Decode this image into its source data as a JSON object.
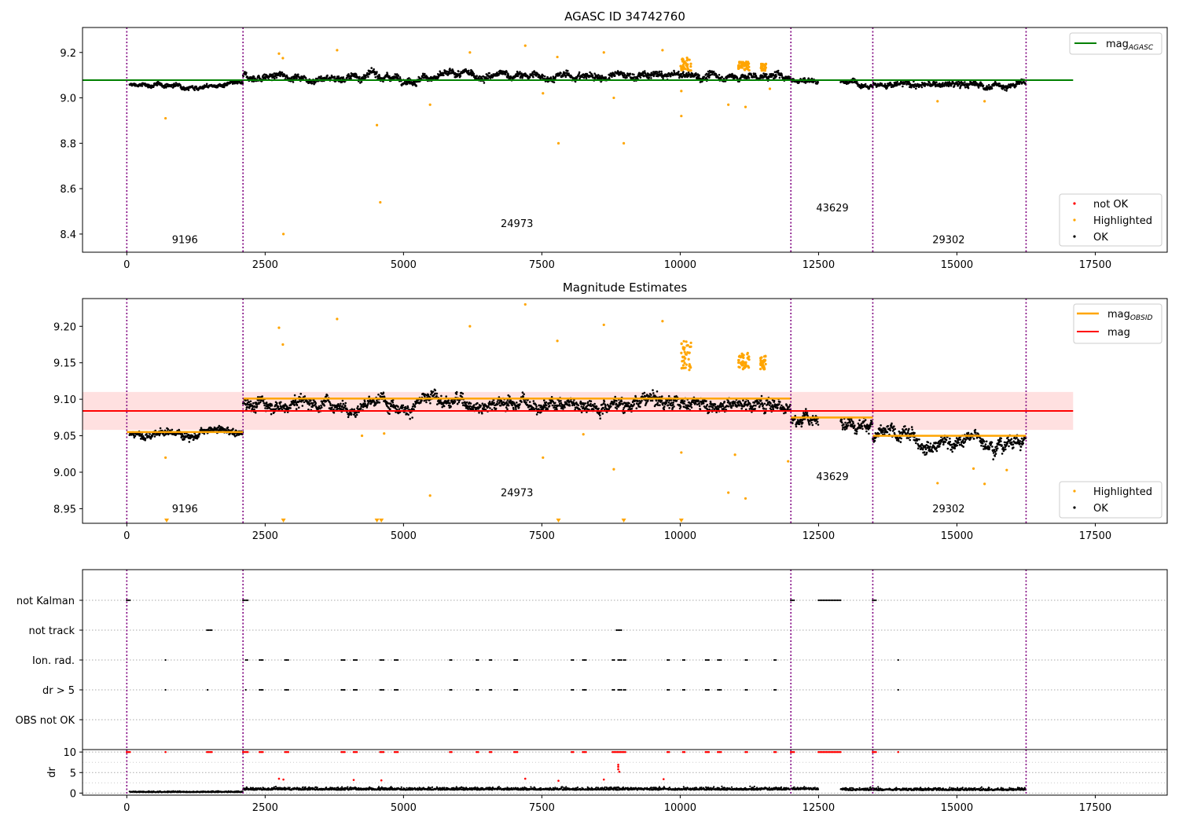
{
  "chart_data": [
    {
      "type": "scatter",
      "title": "AGASC ID 34742760",
      "xlim": [
        -800,
        18800
      ],
      "ylim": [
        8.32,
        9.31
      ],
      "xticks": [
        0,
        2500,
        5000,
        7500,
        10000,
        12500,
        15000,
        17500
      ],
      "yticks": [
        8.4,
        8.6,
        8.8,
        9.0,
        9.2
      ],
      "ytick_labels": [
        "8.4",
        "8.6",
        "8.8",
        "9.0",
        "9.2"
      ],
      "obs_boundaries": [
        0,
        2100,
        12000,
        13480,
        16250
      ],
      "obs_labels": [
        {
          "text": "9196",
          "x": 1050,
          "y": 8.36
        },
        {
          "text": "24973",
          "x": 7050,
          "y": 8.43
        },
        {
          "text": "43629",
          "x": 12750,
          "y": 8.5
        },
        {
          "text": "29302",
          "x": 14850,
          "y": 8.36
        }
      ],
      "hline": {
        "name": "mag_AGASC",
        "y": 9.078,
        "x_range": [
          -800,
          17100
        ],
        "color": "#008000"
      },
      "segments": [
        {
          "x": [
            50,
            2100
          ],
          "center": 9.055,
          "spread": 0.02
        },
        {
          "x": [
            2100,
            12000
          ],
          "center": 9.095,
          "spread": 0.035
        },
        {
          "x": [
            12000,
            12500
          ],
          "center": 9.08,
          "spread": 0.025
        },
        {
          "x": [
            12900,
            13480
          ],
          "center": 9.07,
          "spread": 0.025
        },
        {
          "x": [
            13480,
            16250
          ],
          "center": 9.055,
          "spread": 0.03
        }
      ],
      "highlighted_points": [
        {
          "x": 700,
          "y": 8.91
        },
        {
          "x": 2750,
          "y": 9.195
        },
        {
          "x": 2820,
          "y": 9.175
        },
        {
          "x": 2830,
          "y": 8.4
        },
        {
          "x": 3800,
          "y": 9.21
        },
        {
          "x": 4520,
          "y": 8.88
        },
        {
          "x": 4580,
          "y": 8.54
        },
        {
          "x": 5480,
          "y": 8.97
        },
        {
          "x": 6200,
          "y": 9.2
        },
        {
          "x": 7200,
          "y": 9.23
        },
        {
          "x": 7520,
          "y": 9.02
        },
        {
          "x": 7780,
          "y": 9.18
        },
        {
          "x": 7800,
          "y": 8.8
        },
        {
          "x": 8620,
          "y": 9.2
        },
        {
          "x": 8800,
          "y": 9.0
        },
        {
          "x": 8980,
          "y": 8.8
        },
        {
          "x": 9680,
          "y": 9.21
        },
        {
          "x": 10020,
          "y": 9.03
        },
        {
          "x": 10020,
          "y": 8.92
        },
        {
          "x": 10870,
          "y": 8.97
        },
        {
          "x": 11180,
          "y": 8.96
        },
        {
          "x": 11620,
          "y": 9.04
        },
        {
          "x": 14650,
          "y": 8.985
        },
        {
          "x": 15500,
          "y": 8.985
        }
      ],
      "highlighted_clusters": [
        {
          "x": [
            10000,
            10200
          ],
          "y": [
            9.12,
            9.18
          ]
        },
        {
          "x": [
            11050,
            11250
          ],
          "y": [
            9.12,
            9.16
          ]
        },
        {
          "x": [
            11450,
            11550
          ],
          "y": [
            9.12,
            9.15
          ]
        }
      ],
      "legend": {
        "line": [
          {
            "label_main": "mag",
            "label_sub": "AGASC",
            "color": "#008000"
          }
        ],
        "points": [
          {
            "label": "not OK",
            "color": "#ff0000"
          },
          {
            "label": "Highlighted",
            "color": "#ffa500"
          },
          {
            "label": "OK",
            "color": "#000000"
          }
        ]
      }
    },
    {
      "type": "scatter",
      "title": "Magnitude Estimates",
      "xlim": [
        -800,
        18800
      ],
      "ylim": [
        8.93,
        9.238
      ],
      "xticks": [
        0,
        2500,
        5000,
        7500,
        10000,
        12500,
        15000,
        17500
      ],
      "yticks": [
        8.95,
        9.0,
        9.05,
        9.1,
        9.15,
        9.2
      ],
      "ytick_labels": [
        "8.95",
        "9.00",
        "9.05",
        "9.10",
        "9.15",
        "9.20"
      ],
      "obs_boundaries": [
        0,
        2100,
        12000,
        13480,
        16250
      ],
      "obs_labels": [
        {
          "text": "9196",
          "x": 1050,
          "y": 8.945
        },
        {
          "text": "24973",
          "x": 7050,
          "y": 8.967
        },
        {
          "text": "43629",
          "x": 12750,
          "y": 8.989
        },
        {
          "text": "29302",
          "x": 14850,
          "y": 8.945
        }
      ],
      "mag": {
        "name": "mag",
        "y": 9.084,
        "band": [
          9.058,
          9.11
        ],
        "x_range": [
          -800,
          17100
        ],
        "color": "#ff0000"
      },
      "mag_obsid": [
        {
          "x": [
            0,
            2100
          ],
          "y": 9.055
        },
        {
          "x": [
            2100,
            12000
          ],
          "y": 9.101
        },
        {
          "x": [
            12000,
            13480
          ],
          "y": 9.075
        },
        {
          "x": [
            13480,
            16250
          ],
          "y": 9.05
        }
      ],
      "segments": [
        {
          "x": [
            50,
            2100
          ],
          "center": 9.054,
          "spread": 0.012
        },
        {
          "x": [
            2100,
            12000
          ],
          "center": 9.097,
          "spread": 0.02
        },
        {
          "x": [
            12000,
            12500
          ],
          "center": 9.07,
          "spread": 0.018
        },
        {
          "x": [
            12900,
            13480
          ],
          "center": 9.072,
          "spread": 0.018
        },
        {
          "x": [
            13480,
            16250
          ],
          "center": 9.045,
          "spread": 0.02
        }
      ],
      "highlighted_points": [
        {
          "x": 700,
          "y": 9.02
        },
        {
          "x": 2750,
          "y": 9.198
        },
        {
          "x": 2820,
          "y": 9.175
        },
        {
          "x": 3800,
          "y": 9.21
        },
        {
          "x": 4250,
          "y": 9.05
        },
        {
          "x": 4650,
          "y": 9.053
        },
        {
          "x": 5480,
          "y": 8.968
        },
        {
          "x": 6200,
          "y": 9.2
        },
        {
          "x": 7200,
          "y": 9.23
        },
        {
          "x": 7520,
          "y": 9.02
        },
        {
          "x": 7780,
          "y": 9.18
        },
        {
          "x": 8250,
          "y": 9.052
        },
        {
          "x": 8620,
          "y": 9.202
        },
        {
          "x": 8800,
          "y": 9.004
        },
        {
          "x": 9680,
          "y": 9.207
        },
        {
          "x": 10020,
          "y": 9.027
        },
        {
          "x": 10870,
          "y": 8.972
        },
        {
          "x": 10990,
          "y": 9.024
        },
        {
          "x": 11180,
          "y": 8.964
        },
        {
          "x": 11950,
          "y": 9.015
        },
        {
          "x": 14650,
          "y": 8.985
        },
        {
          "x": 15300,
          "y": 9.005
        },
        {
          "x": 15500,
          "y": 8.984
        },
        {
          "x": 15900,
          "y": 9.003
        }
      ],
      "clipped_markers_x": [
        720,
        2830,
        4520,
        4600,
        7800,
        8980,
        10020
      ],
      "highlighted_clusters": [
        {
          "x": [
            10000,
            10200
          ],
          "y": [
            9.14,
            9.18
          ]
        },
        {
          "x": [
            11050,
            11250
          ],
          "y": [
            9.14,
            9.165
          ]
        },
        {
          "x": [
            11450,
            11550
          ],
          "y": [
            9.14,
            9.16
          ]
        }
      ],
      "legend": {
        "line": [
          {
            "label_main": "mag",
            "label_sub": "OBSID",
            "color": "#ffa500"
          },
          {
            "label_main": "mag",
            "label_sub": "",
            "color": "#ff0000"
          }
        ],
        "points": [
          {
            "label": "Highlighted",
            "color": "#ffa500"
          },
          {
            "label": "OK",
            "color": "#000000"
          }
        ]
      }
    },
    {
      "type": "scatter",
      "title": "",
      "xlim": [
        -800,
        18800
      ],
      "flag_rows": [
        "not Kalman",
        "not track",
        "Ion. rad.",
        "dr > 5",
        "OBS not OK"
      ],
      "obs_boundaries": [
        0,
        2100,
        12000,
        13480,
        16250
      ],
      "flags": {
        "not Kalman": [
          [
            0,
            80
          ],
          [
            2100,
            2200
          ],
          [
            12000,
            12060
          ],
          [
            12500,
            12920
          ],
          [
            13480,
            13560
          ]
        ],
        "not track": [
          [
            1450,
            1540
          ],
          [
            8850,
            8950
          ]
        ],
        "Ion. rad.": [
          [
            700,
            710
          ],
          [
            2150,
            2200
          ],
          [
            2400,
            2460
          ],
          [
            2860,
            2920
          ],
          [
            3880,
            3940
          ],
          [
            4100,
            4160
          ],
          [
            4580,
            4640
          ],
          [
            4840,
            4900
          ],
          [
            5840,
            5880
          ],
          [
            6320,
            6370
          ],
          [
            6560,
            6600
          ],
          [
            7000,
            7060
          ],
          [
            8040,
            8080
          ],
          [
            8240,
            8300
          ],
          [
            8780,
            8820
          ],
          [
            8880,
            8960
          ],
          [
            8980,
            9020
          ],
          [
            9770,
            9810
          ],
          [
            10050,
            10090
          ],
          [
            10460,
            10520
          ],
          [
            10680,
            10740
          ],
          [
            11180,
            11220
          ],
          [
            11700,
            11740
          ],
          [
            13940,
            13950
          ]
        ],
        "dr > 5": [
          [
            700,
            710
          ],
          [
            1460,
            1470
          ],
          [
            2150,
            2170
          ],
          [
            2400,
            2460
          ],
          [
            2860,
            2920
          ],
          [
            3880,
            3940
          ],
          [
            4100,
            4160
          ],
          [
            4580,
            4640
          ],
          [
            4840,
            4900
          ],
          [
            5840,
            5880
          ],
          [
            6320,
            6370
          ],
          [
            6560,
            6600
          ],
          [
            7000,
            7060
          ],
          [
            8040,
            8080
          ],
          [
            8240,
            8300
          ],
          [
            8780,
            8820
          ],
          [
            8880,
            8960
          ],
          [
            8980,
            9020
          ],
          [
            9770,
            9810
          ],
          [
            10050,
            10090
          ],
          [
            10460,
            10520
          ],
          [
            10680,
            10740
          ],
          [
            11180,
            11220
          ],
          [
            11700,
            11740
          ],
          [
            13940,
            13950
          ]
        ],
        "OBS not OK": []
      }
    },
    {
      "type": "scatter",
      "title": "",
      "xlim": [
        -800,
        18800
      ],
      "ylim": [
        -0.5,
        10.6
      ],
      "yticks": [
        0,
        5,
        10
      ],
      "ytick_labels": [
        "0",
        "5",
        "10"
      ],
      "ylabel": "dr",
      "xticks": [
        0,
        2500,
        5000,
        7500,
        10000,
        12500,
        15000,
        17500
      ],
      "obs_boundaries": [
        0,
        2100,
        12000,
        13480,
        16250
      ],
      "segments": [
        {
          "x": [
            50,
            2100
          ],
          "center": 0.3,
          "spread": 0.3
        },
        {
          "x": [
            2100,
            12000
          ],
          "center": 1.0,
          "spread": 0.8
        },
        {
          "x": [
            12000,
            12500
          ],
          "center": 1.1,
          "spread": 0.8
        },
        {
          "x": [
            12900,
            13480
          ],
          "center": 0.9,
          "spread": 0.8
        },
        {
          "x": [
            13480,
            16250
          ],
          "center": 0.9,
          "spread": 0.8
        }
      ],
      "red_at_10": [
        [
          0,
          80
        ],
        [
          700,
          710
        ],
        [
          1450,
          1540
        ],
        [
          2100,
          2200
        ],
        [
          2400,
          2460
        ],
        [
          2860,
          2920
        ],
        [
          3880,
          3940
        ],
        [
          4100,
          4160
        ],
        [
          4580,
          4640
        ],
        [
          4840,
          4900
        ],
        [
          5840,
          5880
        ],
        [
          6320,
          6370
        ],
        [
          6560,
          6600
        ],
        [
          7000,
          7060
        ],
        [
          8040,
          8080
        ],
        [
          8240,
          8300
        ],
        [
          8780,
          9020
        ],
        [
          9770,
          9810
        ],
        [
          10050,
          10090
        ],
        [
          10460,
          10520
        ],
        [
          10680,
          10740
        ],
        [
          11180,
          11220
        ],
        [
          11700,
          11740
        ],
        [
          12000,
          12060
        ],
        [
          12500,
          12920
        ],
        [
          13480,
          13560
        ],
        [
          13940,
          13950
        ]
      ],
      "red_scatter": [
        {
          "x": 2750,
          "y": 3.5
        },
        {
          "x": 2830,
          "y": 3.3
        },
        {
          "x": 4100,
          "y": 3.2
        },
        {
          "x": 7200,
          "y": 3.5
        },
        {
          "x": 8620,
          "y": 3.3
        },
        {
          "x": 8880,
          "y": 5.8
        },
        {
          "x": 8880,
          "y": 6.4
        },
        {
          "x": 8880,
          "y": 6.9
        },
        {
          "x": 8900,
          "y": 5.2
        },
        {
          "x": 9700,
          "y": 3.4
        },
        {
          "x": 7800,
          "y": 3.0
        },
        {
          "x": 4600,
          "y": 3.1
        }
      ]
    }
  ]
}
